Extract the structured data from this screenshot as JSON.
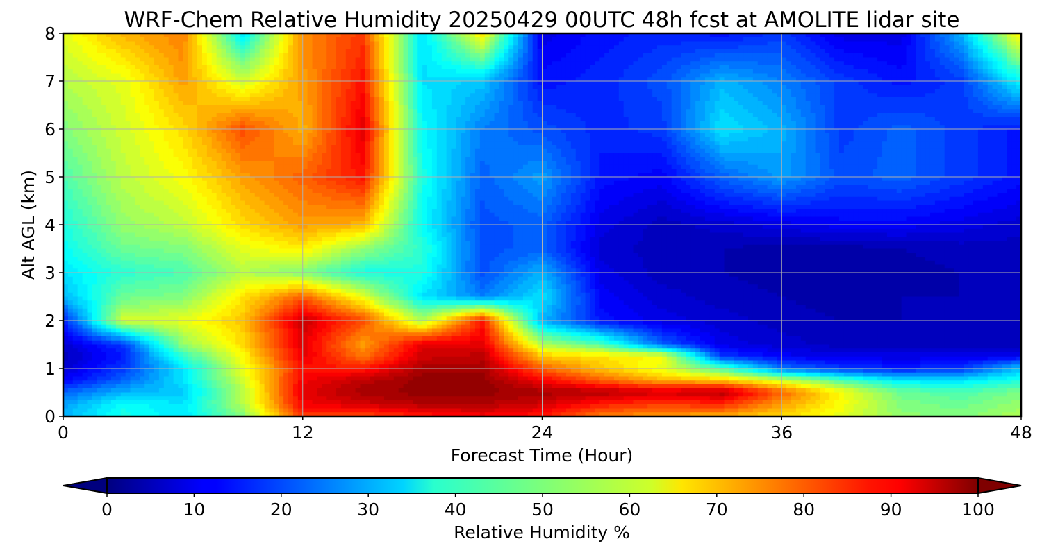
{
  "chart_data": {
    "type": "heatmap",
    "title": "WRF-Chem Relative Humidity 20250429 00UTC 48h fcst at AMOLITE lidar site",
    "xlabel": "Forecast Time (Hour)",
    "ylabel": "Alt AGL (km)",
    "xlim": [
      0,
      48
    ],
    "ylim": [
      0,
      8
    ],
    "x_ticks": [
      "0",
      "12",
      "24",
      "36",
      "48"
    ],
    "y_ticks": [
      "0",
      "1",
      "2",
      "3",
      "4",
      "5",
      "6",
      "7",
      "8"
    ],
    "grid": true,
    "colormap": "jet",
    "colorbar": {
      "label": "Relative Humidity %",
      "range": [
        0,
        100
      ],
      "ticks": [
        "0",
        "10",
        "20",
        "30",
        "40",
        "50",
        "60",
        "70",
        "80",
        "90",
        "100"
      ],
      "orientation": "horizontal",
      "extend": "both",
      "under_color": "#00007f",
      "over_color": "#7f0000"
    },
    "x_hours": [
      0,
      3,
      6,
      9,
      12,
      15,
      18,
      21,
      24,
      27,
      30,
      33,
      36,
      39,
      42,
      45,
      48
    ],
    "y_km": [
      0,
      0.25,
      0.5,
      0.75,
      1,
      1.25,
      1.5,
      2,
      2.5,
      3,
      3.5,
      4,
      5,
      6,
      7,
      8
    ],
    "values": [
      [
        30,
        40,
        35,
        50,
        82,
        80,
        85,
        88,
        85,
        75,
        72,
        70,
        66,
        60,
        52,
        50,
        55
      ],
      [
        28,
        38,
        35,
        55,
        88,
        92,
        95,
        95,
        92,
        85,
        82,
        84,
        72,
        62,
        50,
        48,
        52
      ],
      [
        22,
        30,
        32,
        55,
        90,
        96,
        98,
        98,
        96,
        95,
        92,
        95,
        78,
        62,
        48,
        45,
        50
      ],
      [
        12,
        22,
        35,
        58,
        88,
        94,
        98,
        98,
        88,
        78,
        70,
        68,
        58,
        45,
        35,
        35,
        40
      ],
      [
        8,
        18,
        35,
        60,
        86,
        85,
        96,
        96,
        78,
        68,
        60,
        45,
        24,
        18,
        15,
        18,
        32
      ],
      [
        6,
        15,
        42,
        62,
        90,
        76,
        92,
        94,
        68,
        65,
        62,
        18,
        12,
        10,
        10,
        10,
        12
      ],
      [
        8,
        18,
        52,
        66,
        90,
        72,
        90,
        90,
        55,
        45,
        22,
        10,
        8,
        6,
        6,
        6,
        6
      ],
      [
        15,
        58,
        60,
        68,
        93,
        80,
        55,
        85,
        30,
        14,
        10,
        8,
        6,
        5,
        5,
        5,
        5
      ],
      [
        30,
        48,
        50,
        65,
        78,
        60,
        35,
        25,
        35,
        12,
        8,
        6,
        5,
        4,
        5,
        5,
        5
      ],
      [
        35,
        42,
        45,
        55,
        50,
        40,
        40,
        20,
        30,
        10,
        6,
        5,
        4,
        3,
        4,
        5,
        6
      ],
      [
        38,
        48,
        50,
        60,
        64,
        52,
        42,
        20,
        22,
        8,
        6,
        5,
        4,
        4,
        5,
        6,
        6
      ],
      [
        40,
        52,
        56,
        66,
        72,
        70,
        38,
        20,
        22,
        10,
        6,
        8,
        10,
        12,
        12,
        10,
        8
      ],
      [
        45,
        56,
        62,
        72,
        78,
        86,
        40,
        22,
        28,
        14,
        12,
        22,
        28,
        20,
        22,
        18,
        14
      ],
      [
        50,
        58,
        66,
        80,
        70,
        90,
        38,
        25,
        20,
        16,
        18,
        35,
        30,
        18,
        22,
        18,
        14
      ],
      [
        55,
        60,
        72,
        58,
        72,
        86,
        35,
        32,
        14,
        16,
        20,
        30,
        25,
        18,
        14,
        18,
        38
      ],
      [
        60,
        70,
        75,
        35,
        74,
        82,
        34,
        65,
        10,
        14,
        16,
        14,
        18,
        10,
        10,
        30,
        65
      ]
    ]
  }
}
